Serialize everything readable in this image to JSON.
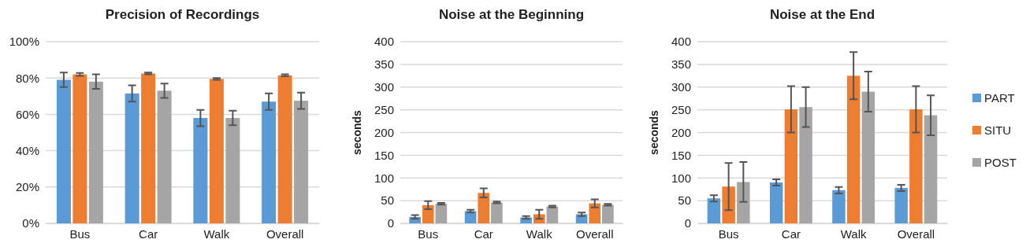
{
  "chart_data": [
    {
      "type": "bar",
      "title": "Precision of Recordings",
      "categories": [
        "Bus",
        "Car",
        "Walk",
        "Overall"
      ],
      "series": [
        {
          "color": "#5b9bd5",
          "values": [
            79,
            71.5,
            58,
            67
          ],
          "errors": [
            4,
            4.5,
            4.5,
            4.5
          ]
        },
        {
          "color": "#ed7d31",
          "values": [
            82,
            82.5,
            79.5,
            81.5
          ],
          "errors": [
            0.8,
            0.5,
            0.5,
            0.5
          ]
        },
        {
          "color": "#a5a5a5",
          "values": [
            78,
            73,
            58,
            67.5
          ],
          "errors": [
            4,
            4,
            4,
            4.5
          ]
        }
      ],
      "ylim": [
        0,
        100
      ],
      "yticks": [
        {
          "value": 0,
          "label": "0%"
        },
        {
          "value": 20,
          "label": "20%"
        },
        {
          "value": 40,
          "label": "40%"
        },
        {
          "value": 60,
          "label": "60%"
        },
        {
          "value": 80,
          "label": "80%"
        },
        {
          "value": 100,
          "label": "100%"
        }
      ],
      "grid": "y"
    },
    {
      "type": "bar",
      "title": "Noise at the Beginning",
      "ylabel": "seconds",
      "categories": [
        "Bus",
        "Car",
        "Walk",
        "Overall"
      ],
      "series": [
        {
          "color": "#5b9bd5",
          "values": [
            14,
            27,
            13,
            20
          ],
          "errors": [
            4,
            3,
            3,
            4
          ]
        },
        {
          "color": "#ed7d31",
          "values": [
            40,
            67,
            20,
            44
          ],
          "errors": [
            9,
            10,
            10,
            9
          ]
        },
        {
          "color": "#a5a5a5",
          "values": [
            43,
            46,
            37,
            41
          ],
          "errors": [
            2,
            2,
            2,
            2
          ]
        }
      ],
      "ylim": [
        0,
        400
      ],
      "yticks": [
        0,
        50,
        100,
        150,
        200,
        250,
        300,
        350,
        400
      ],
      "grid": "y"
    },
    {
      "type": "bar",
      "title": "Noise at the End",
      "ylabel": "seconds",
      "categories": [
        "Bus",
        "Car",
        "Walk",
        "Overall"
      ],
      "series": [
        {
          "name": "PART",
          "color": "#5b9bd5",
          "values": [
            55,
            90,
            73,
            78
          ],
          "errors": [
            7,
            7,
            7,
            7
          ]
        },
        {
          "name": "SITU",
          "color": "#ed7d31",
          "values": [
            81,
            251,
            325,
            251
          ],
          "errors": [
            52,
            51,
            52,
            51
          ]
        },
        {
          "name": "POST",
          "color": "#a5a5a5",
          "values": [
            91,
            256,
            290,
            238
          ],
          "errors": [
            44,
            44,
            44,
            44
          ]
        }
      ],
      "ylim": [
        0,
        400
      ],
      "yticks": [
        0,
        50,
        100,
        150,
        200,
        250,
        300,
        350,
        400
      ],
      "grid": "y",
      "legend": "right"
    }
  ]
}
